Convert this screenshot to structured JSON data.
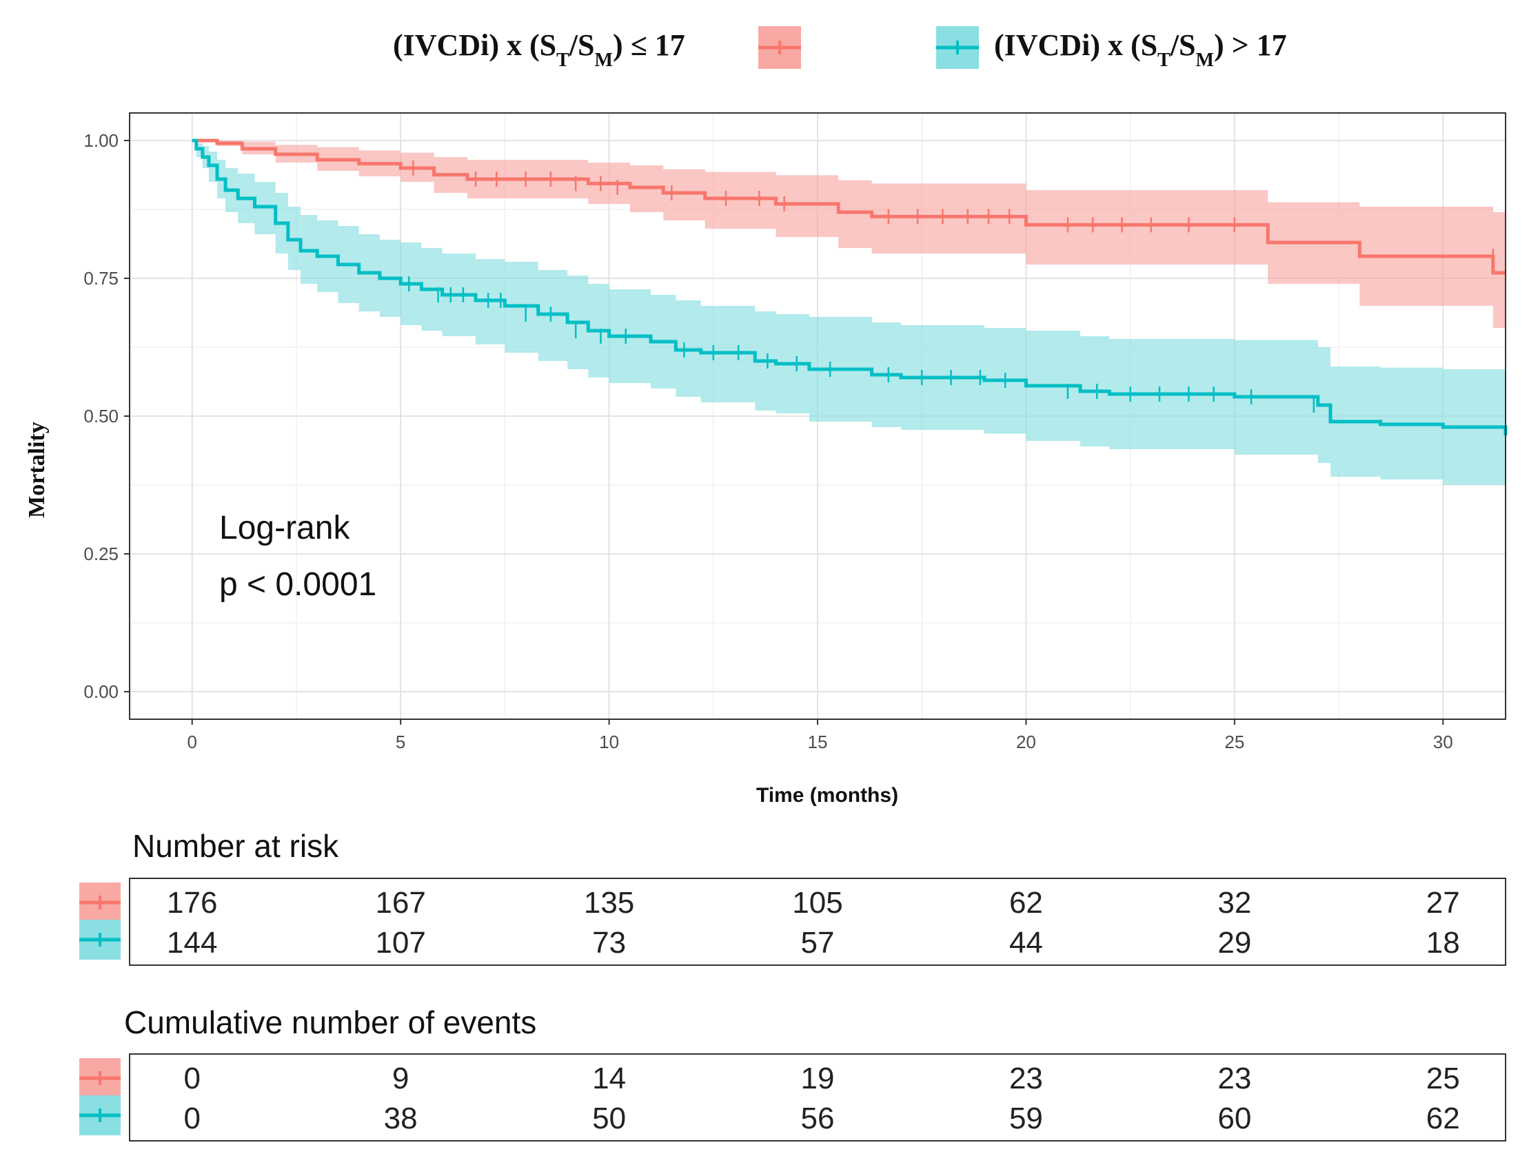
{
  "chart_data": {
    "type": "line",
    "subtype": "kaplan-meier",
    "ylabel": "Mortality",
    "xlabel": "Time (months)",
    "xlim": [
      -1.5,
      31.5
    ],
    "ylim": [
      -0.05,
      1.05
    ],
    "x_ticks": [
      0,
      5,
      10,
      15,
      20,
      25,
      30
    ],
    "y_ticks": [
      0.0,
      0.25,
      0.5,
      0.75,
      1.0
    ],
    "y_tick_labels": [
      "0.00",
      "0.25",
      "0.50",
      "0.75",
      "1.00"
    ],
    "grid": true,
    "legend_position": "top",
    "legend": {
      "red": {
        "prefix": "(IVCDi) x (S",
        "sub1": "T",
        "mid": "/S",
        "sub2": "M",
        "suffix": ") ≤ 17"
      },
      "teal": {
        "prefix": "(IVCDi) x (S",
        "sub1": "T",
        "mid": "/S",
        "sub2": "M",
        "suffix": ") > 17"
      }
    },
    "annotation": [
      "Log-rank",
      "p < 0.0001"
    ],
    "series": [
      {
        "key": "red",
        "color": "#F8766D",
        "band_color": "#F8A9A4",
        "x": [
          0,
          0.6,
          1.2,
          2.0,
          3.0,
          4.0,
          5.0,
          5.8,
          6.6,
          9.5,
          10.5,
          11.3,
          12.3,
          14.0,
          15.5,
          16.3,
          20.0,
          25.8,
          28.0,
          31.2,
          31.5
        ],
        "y": [
          1.0,
          0.995,
          0.985,
          0.975,
          0.965,
          0.958,
          0.95,
          0.938,
          0.93,
          0.922,
          0.915,
          0.905,
          0.895,
          0.885,
          0.87,
          0.862,
          0.847,
          0.815,
          0.79,
          0.76,
          0.76
        ],
        "lower": [
          1.0,
          0.99,
          0.975,
          0.96,
          0.945,
          0.935,
          0.925,
          0.905,
          0.895,
          0.885,
          0.87,
          0.855,
          0.84,
          0.825,
          0.805,
          0.795,
          0.775,
          0.74,
          0.7,
          0.66,
          0.66
        ],
        "upper": [
          1.0,
          1.0,
          0.998,
          0.992,
          0.988,
          0.982,
          0.978,
          0.97,
          0.965,
          0.96,
          0.955,
          0.948,
          0.943,
          0.937,
          0.928,
          0.922,
          0.91,
          0.888,
          0.88,
          0.87,
          0.87
        ],
        "censor_x": [
          5.3,
          6.8,
          7.3,
          8.0,
          8.6,
          9.2,
          9.8,
          10.2,
          11.5,
          12.8,
          13.6,
          14.2,
          16.7,
          17.4,
          18.0,
          18.6,
          19.1,
          19.6,
          21.0,
          21.6,
          22.3,
          23.0,
          23.9,
          25.0,
          31.2
        ],
        "censor_y": [
          0.95,
          0.93,
          0.93,
          0.93,
          0.93,
          0.922,
          0.922,
          0.915,
          0.905,
          0.895,
          0.895,
          0.885,
          0.862,
          0.862,
          0.862,
          0.862,
          0.862,
          0.862,
          0.847,
          0.847,
          0.847,
          0.847,
          0.847,
          0.847,
          0.79
        ]
      },
      {
        "key": "teal",
        "color": "#00BFC4",
        "band_color": "#8ADFE2",
        "x": [
          0,
          0.1,
          0.25,
          0.4,
          0.6,
          0.8,
          1.1,
          1.5,
          2.0,
          2.3,
          2.6,
          3.0,
          3.5,
          4.0,
          4.5,
          5.0,
          5.5,
          6.0,
          6.8,
          7.5,
          8.3,
          9.0,
          9.5,
          10.0,
          11.0,
          11.6,
          12.2,
          13.5,
          14.0,
          14.8,
          16.3,
          17.0,
          19.0,
          20.0,
          21.3,
          22.0,
          25.0,
          27.0,
          27.3,
          28.5,
          30.0,
          31.5
        ],
        "y": [
          1.0,
          0.985,
          0.97,
          0.955,
          0.93,
          0.91,
          0.895,
          0.88,
          0.85,
          0.82,
          0.8,
          0.79,
          0.775,
          0.76,
          0.75,
          0.74,
          0.73,
          0.72,
          0.71,
          0.7,
          0.685,
          0.67,
          0.655,
          0.645,
          0.635,
          0.62,
          0.615,
          0.6,
          0.595,
          0.585,
          0.575,
          0.57,
          0.565,
          0.555,
          0.545,
          0.54,
          0.535,
          0.52,
          0.49,
          0.485,
          0.48,
          0.465
        ],
        "lower": [
          1.0,
          0.97,
          0.95,
          0.925,
          0.895,
          0.87,
          0.85,
          0.83,
          0.795,
          0.765,
          0.74,
          0.725,
          0.705,
          0.69,
          0.68,
          0.665,
          0.655,
          0.645,
          0.63,
          0.615,
          0.6,
          0.585,
          0.57,
          0.56,
          0.55,
          0.535,
          0.525,
          0.51,
          0.505,
          0.49,
          0.48,
          0.475,
          0.468,
          0.455,
          0.445,
          0.44,
          0.43,
          0.415,
          0.39,
          0.385,
          0.375,
          0.36
        ],
        "upper": [
          1.0,
          0.995,
          0.99,
          0.98,
          0.965,
          0.95,
          0.94,
          0.925,
          0.905,
          0.88,
          0.865,
          0.855,
          0.845,
          0.83,
          0.82,
          0.815,
          0.805,
          0.795,
          0.785,
          0.78,
          0.765,
          0.755,
          0.74,
          0.73,
          0.72,
          0.71,
          0.7,
          0.69,
          0.685,
          0.68,
          0.67,
          0.665,
          0.66,
          0.655,
          0.645,
          0.64,
          0.638,
          0.625,
          0.59,
          0.588,
          0.585,
          0.58
        ],
        "censor_x": [
          5.2,
          5.9,
          6.2,
          6.5,
          7.1,
          7.4,
          8.0,
          8.6,
          9.2,
          9.8,
          10.4,
          11.8,
          12.5,
          13.1,
          13.8,
          14.5,
          15.3,
          16.7,
          17.5,
          18.2,
          18.9,
          19.5,
          21.0,
          21.7,
          22.5,
          23.2,
          23.9,
          24.5,
          25.4,
          26.9
        ],
        "censor_y": [
          0.74,
          0.72,
          0.72,
          0.72,
          0.71,
          0.71,
          0.685,
          0.685,
          0.655,
          0.645,
          0.645,
          0.62,
          0.615,
          0.615,
          0.6,
          0.595,
          0.585,
          0.575,
          0.57,
          0.57,
          0.57,
          0.565,
          0.545,
          0.545,
          0.54,
          0.54,
          0.54,
          0.54,
          0.535,
          0.52
        ]
      }
    ]
  },
  "risk_table": {
    "title": "Number at risk",
    "times": [
      0,
      5,
      10,
      15,
      20,
      25,
      30
    ],
    "rows": [
      {
        "key": "red",
        "values": [
          "176",
          "167",
          "135",
          "105",
          "62",
          "32",
          "27"
        ]
      },
      {
        "key": "teal",
        "values": [
          "144",
          "107",
          "73",
          "57",
          "44",
          "29",
          "18"
        ]
      }
    ]
  },
  "events_table": {
    "title": "Cumulative number of events",
    "times": [
      0,
      5,
      10,
      15,
      20,
      25,
      30
    ],
    "rows": [
      {
        "key": "red",
        "values": [
          "0",
          "9",
          "14",
          "19",
          "23",
          "23",
          "25"
        ]
      },
      {
        "key": "teal",
        "values": [
          "0",
          "38",
          "50",
          "56",
          "59",
          "60",
          "62"
        ]
      }
    ]
  }
}
